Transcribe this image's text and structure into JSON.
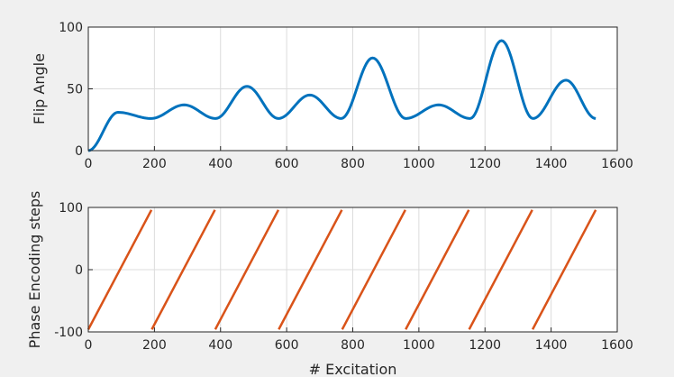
{
  "chart_data": [
    {
      "type": "line",
      "xlabel": "",
      "ylabel": "Flip Angle",
      "xlim": [
        0,
        1600
      ],
      "ylim": [
        0,
        100
      ],
      "xticks": [
        0,
        200,
        400,
        600,
        800,
        1000,
        1200,
        1400,
        1600
      ],
      "yticks": [
        0,
        50,
        100
      ],
      "grid": true,
      "color": "#0072bd",
      "series": [
        {
          "x": [
            0,
            90,
            190,
            290,
            385,
            480,
            575,
            670,
            765,
            860,
            960,
            1060,
            1155,
            1250,
            1345,
            1445,
            1535
          ],
          "y": [
            0,
            31,
            26,
            37,
            26,
            52,
            26,
            45,
            26,
            75,
            26,
            37,
            26,
            89,
            26,
            57,
            26
          ]
        }
      ]
    },
    {
      "type": "line",
      "xlabel": "# Excitation",
      "ylabel": "Phase Encoding steps",
      "xlim": [
        0,
        1600
      ],
      "ylim": [
        -100,
        100
      ],
      "xticks": [
        0,
        200,
        400,
        600,
        800,
        1000,
        1200,
        1400,
        1600
      ],
      "yticks": [
        -100,
        0,
        100
      ],
      "grid": true,
      "color": "#d95319",
      "series": [
        {
          "x": [
            0,
            191
          ],
          "y": [
            -96,
            96
          ]
        },
        {
          "x": [
            192,
            383
          ],
          "y": [
            -96,
            96
          ]
        },
        {
          "x": [
            384,
            575
          ],
          "y": [
            -96,
            96
          ]
        },
        {
          "x": [
            576,
            767
          ],
          "y": [
            -96,
            96
          ]
        },
        {
          "x": [
            768,
            959
          ],
          "y": [
            -96,
            96
          ]
        },
        {
          "x": [
            960,
            1151
          ],
          "y": [
            -96,
            96
          ]
        },
        {
          "x": [
            1152,
            1343
          ],
          "y": [
            -96,
            96
          ]
        },
        {
          "x": [
            1344,
            1535
          ],
          "y": [
            -96,
            96
          ]
        }
      ]
    }
  ]
}
